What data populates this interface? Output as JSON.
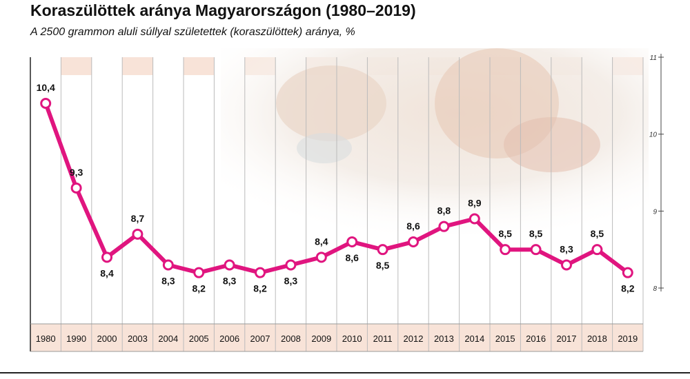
{
  "title": "Koraszülöttek aránya Magyarországon (1980–2019)",
  "subtitle": "A 2500 grammon aluli súllyal születettek (koraszülöttek) aránya, %",
  "colors": {
    "line": "#e0157f",
    "band": "#f8e3d8",
    "grid": "#bbbbbb",
    "text": "#111111"
  },
  "chart_data": {
    "type": "line",
    "title": "Koraszülöttek aránya Magyarországon (1980–2019)",
    "subtitle": "A 2500 grammon aluli súllyal születettek (koraszülöttek) aránya, %",
    "xlabel": "",
    "ylabel": "",
    "categories": [
      "1980",
      "1990",
      "2000",
      "2003",
      "2004",
      "2005",
      "2006",
      "2007",
      "2008",
      "2009",
      "2010",
      "2011",
      "2012",
      "2013",
      "2014",
      "2015",
      "2016",
      "2017",
      "2018",
      "2019"
    ],
    "values": [
      10.4,
      9.3,
      8.4,
      8.7,
      8.3,
      8.2,
      8.3,
      8.2,
      8.3,
      8.4,
      8.6,
      8.5,
      8.6,
      8.8,
      8.9,
      8.5,
      8.5,
      8.3,
      8.5,
      8.2
    ],
    "value_labels": [
      "10,4",
      "9,3",
      "8,4",
      "8,7",
      "8,3",
      "8,2",
      "8,3",
      "8,2",
      "8,3",
      "8,4",
      "8,6",
      "8,5",
      "8,6",
      "8,8",
      "8,9",
      "8,5",
      "8,5",
      "8,3",
      "8,5",
      "8,2"
    ],
    "label_position": [
      "above",
      "above",
      "below",
      "above",
      "below",
      "below",
      "below",
      "below",
      "below",
      "above",
      "below",
      "below",
      "above",
      "above",
      "above",
      "above",
      "above",
      "above",
      "above",
      "below"
    ],
    "yticks": [
      8,
      9,
      10,
      11
    ],
    "ytick_labels": [
      "8",
      "9",
      "10",
      "11"
    ],
    "ylim": [
      8,
      11
    ],
    "y_axis_position": "right",
    "grid": true,
    "legend": "none"
  }
}
